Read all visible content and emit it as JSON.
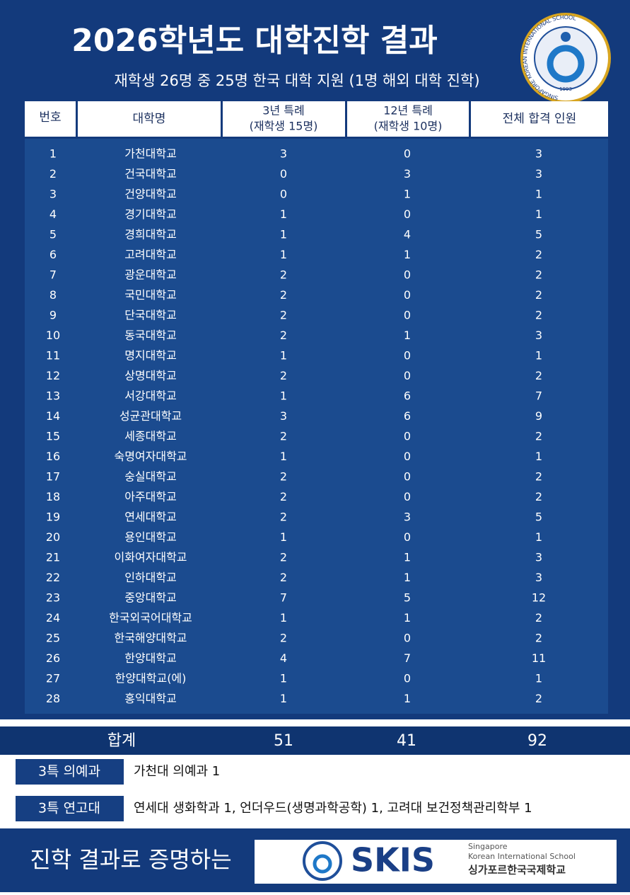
{
  "header": {
    "title": "2026학년도 대학진학 결과",
    "subtitle": "재학생 26명 중 25명 한국 대학 지원 (1명 해외 대학 진학)"
  },
  "logo": {
    "ring_text": "SINGAPORE KOREAN INTERNATIONAL SCHOOL",
    "year": "1993"
  },
  "table": {
    "columns": [
      "번호",
      "대학명",
      "3년 특례",
      "(재학생 15명)",
      "12년 특례",
      "(재학생 10명)",
      "전체 합격 인원"
    ],
    "rows": [
      [
        1,
        "가천대학교",
        3,
        0,
        3
      ],
      [
        2,
        "건국대학교",
        0,
        3,
        3
      ],
      [
        3,
        "건양대학교",
        0,
        1,
        1
      ],
      [
        4,
        "경기대학교",
        1,
        0,
        1
      ],
      [
        5,
        "경희대학교",
        1,
        4,
        5
      ],
      [
        6,
        "고려대학교",
        1,
        1,
        2
      ],
      [
        7,
        "광운대학교",
        2,
        0,
        2
      ],
      [
        8,
        "국민대학교",
        2,
        0,
        2
      ],
      [
        9,
        "단국대학교",
        2,
        0,
        2
      ],
      [
        10,
        "동국대학교",
        2,
        1,
        3
      ],
      [
        11,
        "명지대학교",
        1,
        0,
        1
      ],
      [
        12,
        "상명대학교",
        2,
        0,
        2
      ],
      [
        13,
        "서강대학교",
        1,
        6,
        7
      ],
      [
        14,
        "성균관대학교",
        3,
        6,
        9
      ],
      [
        15,
        "세종대학교",
        2,
        0,
        2
      ],
      [
        16,
        "숙명여자대학교",
        1,
        0,
        1
      ],
      [
        17,
        "숭실대학교",
        2,
        0,
        2
      ],
      [
        18,
        "아주대학교",
        2,
        0,
        2
      ],
      [
        19,
        "연세대학교",
        2,
        3,
        5
      ],
      [
        20,
        "용인대학교",
        1,
        0,
        1
      ],
      [
        21,
        "이화여자대학교",
        2,
        1,
        3
      ],
      [
        22,
        "인하대학교",
        2,
        1,
        3
      ],
      [
        23,
        "중앙대학교",
        7,
        5,
        12
      ],
      [
        24,
        "한국외국어대학교",
        1,
        1,
        2
      ],
      [
        25,
        "한국해양대학교",
        2,
        0,
        2
      ],
      [
        26,
        "한양대학교",
        4,
        7,
        11
      ],
      [
        27,
        "한양대학교(에)",
        1,
        0,
        1
      ],
      [
        28,
        "홍익대학교",
        1,
        1,
        2
      ]
    ],
    "total": [
      "합계",
      51,
      41,
      92
    ]
  },
  "notes": [
    {
      "label": "3특 의예과",
      "text": "가천대 의예과 1"
    },
    {
      "label": "3특 연고대",
      "text": "연세대 생화학과 1, 언더우드(생명과학공학) 1, 고려대 보건정책관리학부 1"
    }
  ],
  "footer": {
    "slogan": "진학 결과로 증명하는",
    "brand": "SKIS",
    "line1": "Singapore",
    "line2": "Korean International School",
    "line3": "싱가포르한국국제학교"
  }
}
